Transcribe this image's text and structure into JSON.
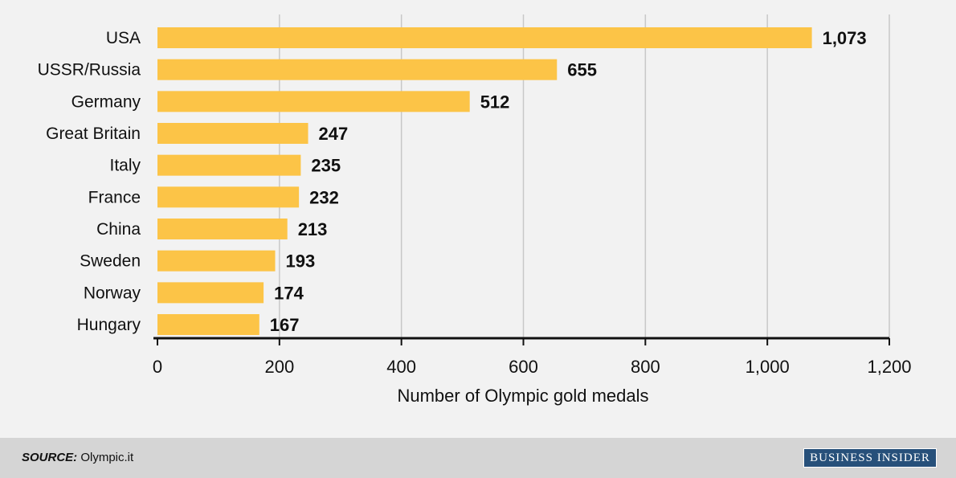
{
  "chart_data": {
    "type": "bar",
    "orientation": "horizontal",
    "categories": [
      "USA",
      "USSR/Russia",
      "Germany",
      "Great Britain",
      "Italy",
      "France",
      "China",
      "Sweden",
      "Norway",
      "Hungary"
    ],
    "values": [
      1073,
      655,
      512,
      247,
      235,
      232,
      213,
      193,
      174,
      167
    ],
    "value_labels": [
      "1,073",
      "655",
      "512",
      "247",
      "235",
      "232",
      "213",
      "193",
      "174",
      "167"
    ],
    "xlabel": "Number of Olympic gold medals",
    "xlim": [
      0,
      1200
    ],
    "xticks": [
      0,
      200,
      400,
      600,
      800,
      1000,
      1200
    ],
    "xtick_labels": [
      "0",
      "200",
      "400",
      "600",
      "800",
      "1,000",
      "1,200"
    ],
    "grid": "vertical",
    "bar_color": "#fcc447"
  },
  "footer": {
    "source_label": "SOURCE:",
    "source_text": "Olympic.it",
    "brand": "BUSINESS INSIDER"
  }
}
